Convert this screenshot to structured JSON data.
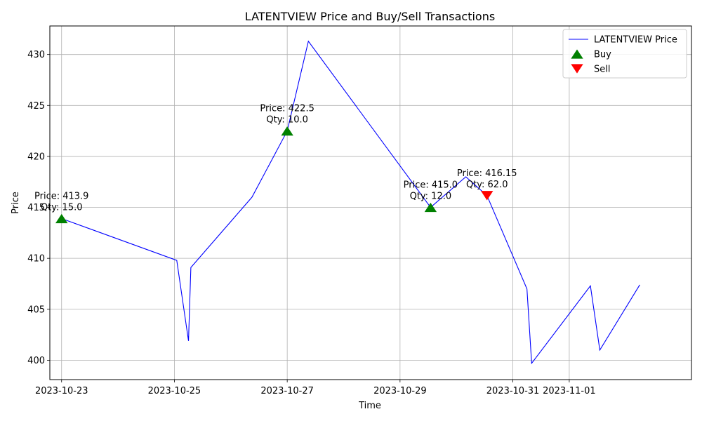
{
  "chart_data": {
    "type": "line",
    "title": "LATENTVIEW Price and Buy/Sell Transactions",
    "xlabel": "Time",
    "ylabel": "Price",
    "x_ticks": [
      "2023-10-23",
      "2023-10-25",
      "2023-10-27",
      "2023-10-29",
      "2023-10-31",
      "2023-11-01"
    ],
    "y_ticks": [
      400,
      405,
      410,
      415,
      420,
      425,
      430
    ],
    "xlim": [
      "2023-10-22 19:00",
      "2023-11-03 04:00"
    ],
    "ylim": [
      398.1,
      432.8
    ],
    "grid": true,
    "legend_position": "top-right",
    "colors": {
      "line": "#0000ff",
      "buy": "#008000",
      "sell": "#ff0000",
      "grid": "#b0b0b0"
    },
    "series": [
      {
        "name": "LATENTVIEW Price",
        "points": [
          {
            "x": "2023-10-23 00:00",
            "y": 413.9
          },
          {
            "x": "2023-10-25 01:00",
            "y": 409.8
          },
          {
            "x": "2023-10-25 06:00",
            "y": 401.9
          },
          {
            "x": "2023-10-25 07:00",
            "y": 409.1
          },
          {
            "x": "2023-10-26 09:00",
            "y": 416.0
          },
          {
            "x": "2023-10-27 00:00",
            "y": 422.5
          },
          {
            "x": "2023-10-27 09:00",
            "y": 431.3
          },
          {
            "x": "2023-10-29 13:00",
            "y": 415.0
          },
          {
            "x": "2023-10-30 04:00",
            "y": 418.0
          },
          {
            "x": "2023-10-30 13:00",
            "y": 416.15
          },
          {
            "x": "2023-10-31 06:00",
            "y": 407.0
          },
          {
            "x": "2023-10-31 08:00",
            "y": 399.7
          },
          {
            "x": "2023-11-01 09:00",
            "y": 407.3
          },
          {
            "x": "2023-11-01 13:00",
            "y": 401.0
          },
          {
            "x": "2023-11-02 06:00",
            "y": 407.4
          }
        ]
      }
    ],
    "legend": [
      {
        "label": "LATENTVIEW Price",
        "kind": "line"
      },
      {
        "label": "Buy",
        "kind": "buy"
      },
      {
        "label": "Sell",
        "kind": "sell"
      }
    ],
    "transactions": [
      {
        "type": "buy",
        "x": "2023-10-23 00:00",
        "y": 413.9,
        "label_price": "Price: 413.9",
        "label_qty": "Qty: 15.0"
      },
      {
        "type": "buy",
        "x": "2023-10-27 00:00",
        "y": 422.5,
        "label_price": "Price: 422.5",
        "label_qty": "Qty: 10.0"
      },
      {
        "type": "buy",
        "x": "2023-10-29 13:00",
        "y": 415.0,
        "label_price": "Price: 415.0",
        "label_qty": "Qty: 12.0"
      },
      {
        "type": "sell",
        "x": "2023-10-30 13:00",
        "y": 416.15,
        "label_price": "Price: 416.15",
        "label_qty": "Qty: 62.0"
      }
    ]
  }
}
